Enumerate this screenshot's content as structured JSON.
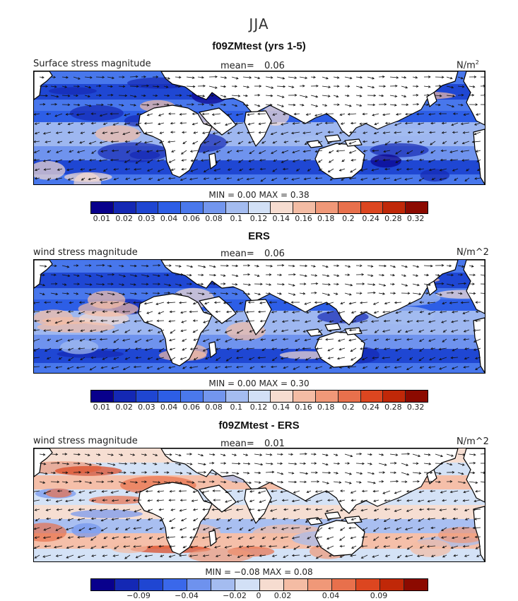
{
  "figure": {
    "season": "JJA"
  },
  "panels": [
    {
      "title": "f09ZMtest (yrs 1-5)",
      "field": "Surface stress magnitude",
      "mean_label": "mean=",
      "mean_value": "0.06",
      "units": "N/m",
      "units_sup": "2",
      "min_max": "MIN =    0.00  MAX =    0.38",
      "colorbar_ticks": [
        "0.01",
        "0.02",
        "0.03",
        "0.04",
        "0.06",
        "0.08",
        "0.1",
        "0.12",
        "0.14",
        "0.16",
        "0.18",
        "0.2",
        "0.24",
        "0.28",
        "0.32"
      ],
      "kind": "abs"
    },
    {
      "title": "ERS",
      "field": "wind stress magnitude",
      "mean_label": "mean=",
      "mean_value": "0.06",
      "units": "N/m^2",
      "units_sup": "",
      "min_max": "MIN =    0.00  MAX =    0.30",
      "colorbar_ticks": [
        "0.01",
        "0.02",
        "0.03",
        "0.04",
        "0.06",
        "0.08",
        "0.1",
        "0.12",
        "0.14",
        "0.16",
        "0.18",
        "0.2",
        "0.24",
        "0.28",
        "0.32"
      ],
      "kind": "abs"
    },
    {
      "title": "f09ZMtest - ERS",
      "field": "wind stress magnitude",
      "mean_label": "mean=",
      "mean_value": "0.01",
      "units": "N/m^2",
      "units_sup": "",
      "min_max": "MIN =  −0.08  MAX =    0.08",
      "colorbar_ticks": [
        "−0.09",
        "−0.04",
        "−0.02",
        "0",
        "0.02",
        "0.04",
        "0.09"
      ],
      "kind": "diff"
    }
  ],
  "colors": {
    "abs_scale": [
      "#08008c",
      "#1428b4",
      "#1f46d2",
      "#2d5ee6",
      "#4a78ec",
      "#7396ee",
      "#a4bcf0",
      "#d2e0f6",
      "#f6dcd0",
      "#f4bca4",
      "#f09878",
      "#e8704c",
      "#dc4620",
      "#c02808",
      "#8c0a00"
    ],
    "diff_scale": [
      "#08008c",
      "#1428b4",
      "#1f46d2",
      "#3a68ea",
      "#6e92ee",
      "#a4bcf0",
      "#d2e0f6",
      "#f6dcd0",
      "#f4bca4",
      "#f09878",
      "#e8704c",
      "#dc4620",
      "#c02808",
      "#8c0a00"
    ]
  }
}
